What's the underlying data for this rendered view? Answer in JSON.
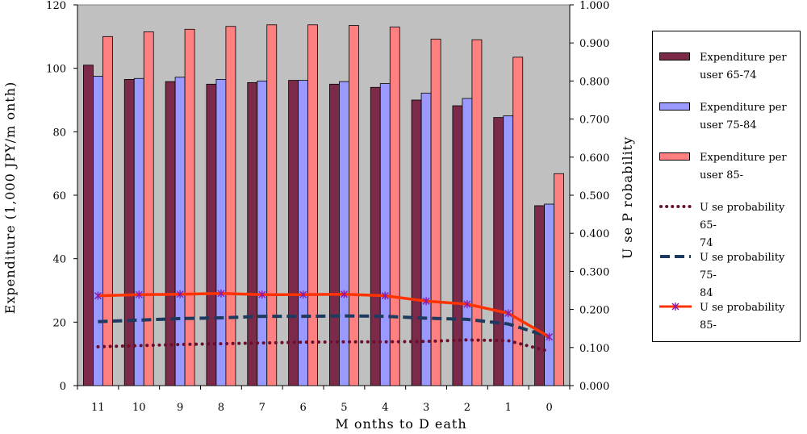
{
  "chart_data": {
    "type": "bar",
    "categories": [
      "11",
      "10",
      "9",
      "8",
      "7",
      "6",
      "5",
      "4",
      "3",
      "2",
      "1",
      "0"
    ],
    "series": [
      {
        "name": "Expenditure per user 65-74",
        "kind": "bar",
        "axis": "left",
        "color": "#7B2A4A",
        "values": [
          101,
          96.5,
          95.8,
          95,
          95.5,
          96.2,
          95,
          94,
          90,
          88.2,
          84.5,
          56.7
        ]
      },
      {
        "name": "Expenditure per user 75-84",
        "kind": "bar",
        "axis": "left",
        "color": "#9999FF",
        "values": [
          97.5,
          96.8,
          97.2,
          96.5,
          96,
          96.2,
          95.8,
          95.2,
          92.2,
          90.5,
          85,
          57.2
        ]
      },
      {
        "name": "Expenditure per user 85-",
        "kind": "bar",
        "axis": "left",
        "color": "#FF8080",
        "values": [
          110,
          111.5,
          112.3,
          113.2,
          113.7,
          113.7,
          113.5,
          113,
          109.2,
          109,
          103.5,
          66.8
        ]
      },
      {
        "name": "Use probability 65-74",
        "kind": "line",
        "axis": "right",
        "color": "#6B0F2E",
        "style": "dotted",
        "values": [
          0.102,
          0.105,
          0.108,
          0.11,
          0.112,
          0.114,
          0.115,
          0.115,
          0.116,
          0.12,
          0.118,
          0.09
        ]
      },
      {
        "name": "Use probability 75-84",
        "kind": "line",
        "axis": "right",
        "color": "#1F3A5F",
        "style": "dashed",
        "values": [
          0.168,
          0.172,
          0.176,
          0.178,
          0.182,
          0.182,
          0.183,
          0.182,
          0.177,
          0.174,
          0.162,
          0.128
        ]
      },
      {
        "name": "Use probability 85-",
        "kind": "line",
        "axis": "right",
        "color": "#FF3300",
        "style": "solid-marker",
        "values": [
          0.236,
          0.239,
          0.24,
          0.242,
          0.239,
          0.239,
          0.24,
          0.236,
          0.222,
          0.214,
          0.19,
          0.128
        ]
      }
    ],
    "xlabel": "M onths to D eath",
    "ylabel": "Expenditure (1,000 JPY/m onth)",
    "y2label": "U se P robability",
    "ylim": [
      0,
      120
    ],
    "y2lim": [
      0,
      1
    ],
    "yticks": [
      "0",
      "20",
      "40",
      "60",
      "80",
      "100",
      "120"
    ],
    "y2ticks": [
      "0.000",
      "0.100",
      "0.200",
      "0.300",
      "0.400",
      "0.500",
      "0.600",
      "0.700",
      "0.800",
      "0.900",
      "1.000"
    ],
    "legend_position": "right",
    "plot_background": "#C0C0C0"
  },
  "legend": {
    "items": [
      {
        "line1": "Expenditure per",
        "line2": "user 65-74"
      },
      {
        "line1": "Expenditure per",
        "line2": "user 75-84"
      },
      {
        "line1": "Expenditure per",
        "line2": "user 85-"
      },
      {
        "line1": "U se probability 65-",
        "line2": "74"
      },
      {
        "line1": "U se probability 75-",
        "line2": "84"
      },
      {
        "line1": "U se probability 85-",
        "line2": ""
      }
    ]
  }
}
